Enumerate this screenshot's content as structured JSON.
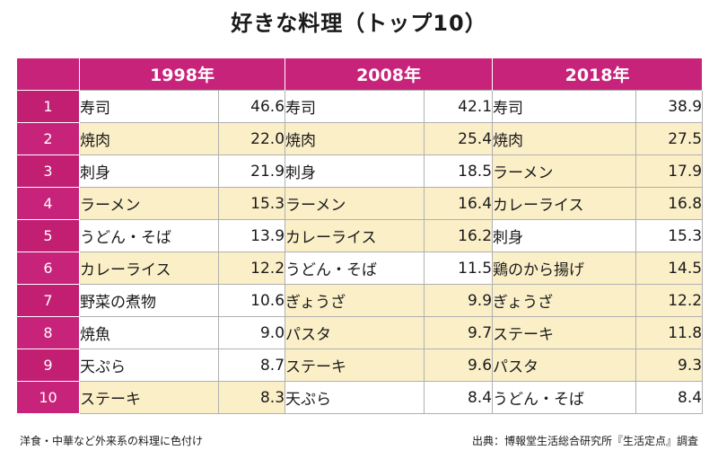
{
  "title": "好きな料理（トップ10）",
  "footnote": "洋食・中華など外来系の料理に色付け",
  "source": "出典：博報堂生活総合研究所『生活定点』調査",
  "colors": {
    "header": "#c8237a",
    "western_highlight": "#fbefc8"
  },
  "chart_data": {
    "type": "table",
    "title": "好きな料理（トップ10）",
    "columns": [
      "1998年",
      "2008年",
      "2018年"
    ],
    "ranks": [
      "1",
      "2",
      "3",
      "4",
      "5",
      "6",
      "7",
      "8",
      "9",
      "10"
    ],
    "years": [
      {
        "label": "1998年",
        "rows": [
          {
            "dish": "寿司",
            "value": "46.6",
            "western": false
          },
          {
            "dish": "焼肉",
            "value": "22.0",
            "western": true
          },
          {
            "dish": "刺身",
            "value": "21.9",
            "western": false
          },
          {
            "dish": "ラーメン",
            "value": "15.3",
            "western": true
          },
          {
            "dish": "うどん・そば",
            "value": "13.9",
            "western": false
          },
          {
            "dish": "カレーライス",
            "value": "12.2",
            "western": true
          },
          {
            "dish": "野菜の煮物",
            "value": "10.6",
            "western": false
          },
          {
            "dish": "焼魚",
            "value": "9.0",
            "western": false
          },
          {
            "dish": "天ぷら",
            "value": "8.7",
            "western": false
          },
          {
            "dish": "ステーキ",
            "value": "8.3",
            "western": true
          }
        ]
      },
      {
        "label": "2008年",
        "rows": [
          {
            "dish": "寿司",
            "value": "42.1",
            "western": false
          },
          {
            "dish": "焼肉",
            "value": "25.4",
            "western": true
          },
          {
            "dish": "刺身",
            "value": "18.5",
            "western": false
          },
          {
            "dish": "ラーメン",
            "value": "16.4",
            "western": true
          },
          {
            "dish": "カレーライス",
            "value": "16.2",
            "western": true
          },
          {
            "dish": "うどん・そば",
            "value": "11.5",
            "western": false
          },
          {
            "dish": "ぎょうざ",
            "value": "9.9",
            "western": true
          },
          {
            "dish": "パスタ",
            "value": "9.7",
            "western": true
          },
          {
            "dish": "ステーキ",
            "value": "9.6",
            "western": true
          },
          {
            "dish": "天ぷら",
            "value": "8.4",
            "western": false
          }
        ]
      },
      {
        "label": "2018年",
        "rows": [
          {
            "dish": "寿司",
            "value": "38.9",
            "western": false
          },
          {
            "dish": "焼肉",
            "value": "27.5",
            "western": true
          },
          {
            "dish": "ラーメン",
            "value": "17.9",
            "western": true
          },
          {
            "dish": "カレーライス",
            "value": "16.8",
            "western": true
          },
          {
            "dish": "刺身",
            "value": "15.3",
            "western": false
          },
          {
            "dish": "鶏のから揚げ",
            "value": "14.5",
            "western": true
          },
          {
            "dish": "ぎょうざ",
            "value": "12.2",
            "western": true
          },
          {
            "dish": "ステーキ",
            "value": "11.8",
            "western": true
          },
          {
            "dish": "パスタ",
            "value": "9.3",
            "western": true
          },
          {
            "dish": "うどん・そば",
            "value": "8.4",
            "western": false
          }
        ]
      }
    ]
  }
}
